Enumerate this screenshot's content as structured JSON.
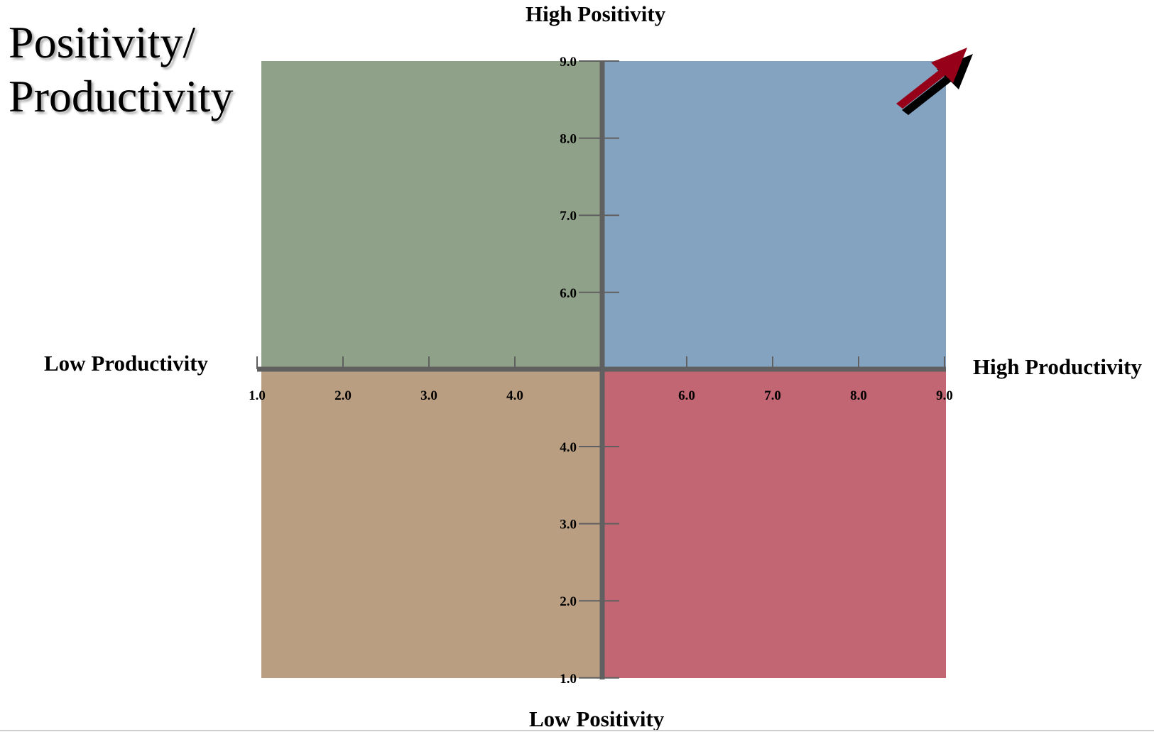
{
  "title": {
    "line1": "Positivity/",
    "line2": "Productivity"
  },
  "labels": {
    "top": "High Positivity",
    "bottom": "Low Positivity",
    "left": "Low Productivity",
    "right": "High Productivity"
  },
  "chart_data": {
    "type": "quadrant",
    "x_ticks": [
      "1.0",
      "2.0",
      "3.0",
      "4.0",
      "6.0",
      "7.0",
      "8.0",
      "9.0"
    ],
    "y_ticks": [
      "9.0",
      "8.0",
      "7.0",
      "6.0",
      "4.0",
      "3.0",
      "2.0",
      "1.0"
    ],
    "quadrant_colors": {
      "top_left": "#90a189",
      "top_right": "#84a3c1",
      "bottom_left": "#b99e82",
      "bottom_right": "#c26673"
    },
    "axis_color": "#606060",
    "arrow_color": "#960018",
    "arrow_direction": "up-right"
  }
}
